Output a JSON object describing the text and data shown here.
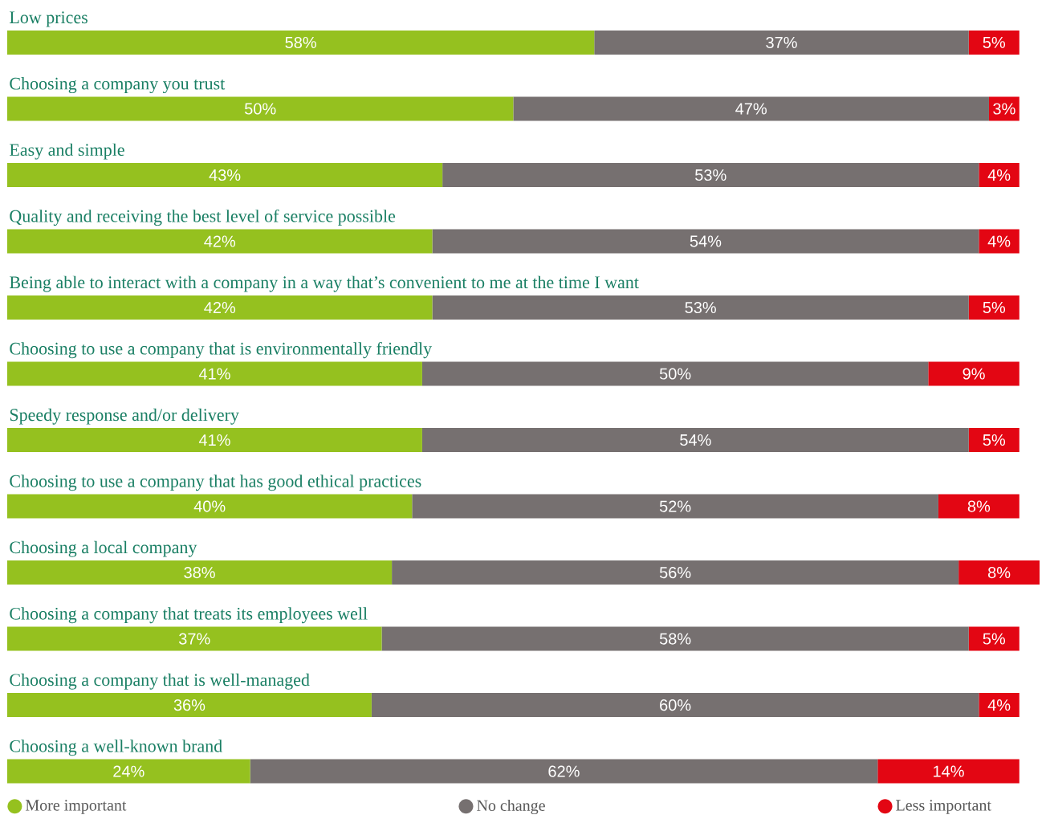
{
  "chart_data": {
    "type": "bar",
    "orientation": "horizontal",
    "stacked": true,
    "legend": "bottom",
    "categories": [
      "Low prices",
      "Choosing a company you trust",
      "Easy and simple",
      "Quality and receiving the best level of service possible",
      "Being able to interact with a company in a way that’s convenient to me at the time I want",
      "Choosing to use a company that is environmentally friendly",
      "Speedy response and/or delivery",
      "Choosing to use a company that has good ethical practices",
      "Choosing a local company",
      "Choosing a company that treats its employees well",
      "Choosing a company that is well-managed",
      "Choosing  a well-known brand"
    ],
    "series": [
      {
        "name": "More important",
        "color": "#95c11f",
        "values": [
          58,
          50,
          43,
          42,
          42,
          41,
          41,
          40,
          38,
          37,
          36,
          24
        ],
        "value_labels": [
          "58%",
          "50%",
          "43%",
          "42%",
          "42%",
          "41%",
          "41%",
          "40%",
          "38%",
          "37%",
          "36%",
          "24%"
        ]
      },
      {
        "name": "No change",
        "color": "#767070",
        "values": [
          37,
          47,
          53,
          54,
          53,
          50,
          54,
          52,
          56,
          58,
          60,
          62
        ],
        "value_labels": [
          "37%",
          "47%",
          "53%",
          "54%",
          "53%",
          "50%",
          "54%",
          "52%",
          "56%",
          "58%",
          "60%",
          "62%"
        ]
      },
      {
        "name": "Less important",
        "color": "#e30613",
        "values": [
          5,
          3,
          4,
          4,
          5,
          9,
          5,
          8,
          8,
          5,
          4,
          14
        ],
        "value_labels": [
          "5%",
          "3%",
          "4%",
          "4%",
          "5%",
          "9%",
          "5%",
          "8%",
          "8%",
          "5%",
          "4%",
          "14%"
        ]
      }
    ]
  }
}
